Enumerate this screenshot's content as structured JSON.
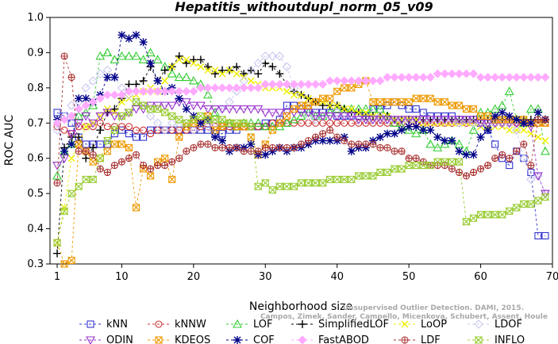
{
  "chart_data": {
    "type": "line",
    "title": "Hepatitis_withoutdupl_norm_05_v09",
    "xlabel": "Neighborhood size",
    "ylabel": "ROC AUC",
    "xlim": [
      0,
      70
    ],
    "ylim": [
      0.3,
      1.0
    ],
    "x_ticks": [
      "1",
      "10",
      "20",
      "30",
      "40",
      "50",
      "60",
      "70"
    ],
    "y_ticks": [
      "0.3",
      "0.4",
      "0.5",
      "0.6",
      "0.7",
      "0.8",
      "0.9",
      "1.0"
    ],
    "grid": false,
    "legend_position": "bottom",
    "x": [
      1,
      2,
      3,
      4,
      5,
      6,
      7,
      8,
      9,
      10,
      11,
      12,
      13,
      14,
      15,
      16,
      17,
      18,
      19,
      20,
      21,
      22,
      23,
      24,
      25,
      26,
      27,
      28,
      29,
      30,
      31,
      32,
      33,
      34,
      35,
      36,
      37,
      38,
      39,
      40,
      41,
      42,
      43,
      44,
      45,
      46,
      47,
      48,
      49,
      50,
      51,
      52,
      53,
      54,
      55,
      56,
      57,
      58,
      59,
      60,
      61,
      62,
      63,
      64,
      65,
      66,
      67,
      68,
      69
    ],
    "series": [
      {
        "name": "kNN",
        "color": "#3333cc",
        "marker": "square",
        "values": [
          0.73,
          0.72,
          0.7,
          0.66,
          0.64,
          0.64,
          0.64,
          0.64,
          0.67,
          0.68,
          0.67,
          0.66,
          0.66,
          0.68,
          0.68,
          0.68,
          0.68,
          0.68,
          0.68,
          0.68,
          0.68,
          0.68,
          0.67,
          0.67,
          0.68,
          0.68,
          0.69,
          0.69,
          0.69,
          0.7,
          0.7,
          0.71,
          0.75,
          0.75,
          0.74,
          0.74,
          0.73,
          0.73,
          0.73,
          0.72,
          0.72,
          0.72,
          0.72,
          0.72,
          0.74,
          0.74,
          0.75,
          0.76,
          0.75,
          0.74,
          0.74,
          0.73,
          0.72,
          0.72,
          0.72,
          0.72,
          0.71,
          0.71,
          0.71,
          0.7,
          0.68,
          0.64,
          0.6,
          0.58,
          0.62,
          0.6,
          0.56,
          0.38,
          0.38
        ]
      },
      {
        "name": "kNNW",
        "color": "#cc3333",
        "marker": "circle",
        "values": [
          0.69,
          0.68,
          0.67,
          0.69,
          0.69,
          0.69,
          0.7,
          0.69,
          0.69,
          0.69,
          0.69,
          0.68,
          0.68,
          0.67,
          0.68,
          0.68,
          0.68,
          0.68,
          0.68,
          0.68,
          0.69,
          0.69,
          0.69,
          0.69,
          0.69,
          0.69,
          0.69,
          0.69,
          0.69,
          0.69,
          0.7,
          0.7,
          0.7,
          0.7,
          0.7,
          0.7,
          0.7,
          0.7,
          0.7,
          0.7,
          0.7,
          0.7,
          0.7,
          0.7,
          0.7,
          0.7,
          0.7,
          0.7,
          0.7,
          0.7,
          0.7,
          0.7,
          0.7,
          0.7,
          0.7,
          0.7,
          0.7,
          0.7,
          0.7,
          0.7,
          0.7,
          0.7,
          0.7,
          0.7,
          0.7,
          0.7,
          0.7,
          0.7,
          0.7
        ]
      },
      {
        "name": "LOF",
        "color": "#33cc33",
        "marker": "triangle-up",
        "values": [
          0.55,
          0.62,
          0.64,
          0.72,
          0.73,
          0.75,
          0.89,
          0.9,
          0.88,
          0.89,
          0.89,
          0.89,
          0.88,
          0.9,
          0.88,
          0.86,
          0.84,
          0.83,
          0.83,
          0.82,
          0.81,
          0.78,
          0.73,
          0.7,
          0.7,
          0.69,
          0.7,
          0.7,
          0.7,
          0.69,
          0.69,
          0.69,
          0.7,
          0.71,
          0.72,
          0.73,
          0.72,
          0.72,
          0.73,
          0.74,
          0.74,
          0.74,
          0.74,
          0.74,
          0.74,
          0.74,
          0.72,
          0.7,
          0.69,
          0.68,
          0.67,
          0.68,
          0.64,
          0.63,
          0.64,
          0.65,
          0.64,
          0.62,
          0.68,
          0.73,
          0.73,
          0.74,
          0.75,
          0.79,
          0.71,
          0.7,
          0.74,
          0.74,
          0.62
        ]
      },
      {
        "name": "SimplifiedLOF",
        "color": "#000000",
        "marker": "plus",
        "values": [
          0.33,
          0.63,
          0.66,
          0.66,
          0.6,
          0.63,
          0.68,
          0.73,
          0.74,
          0.77,
          0.81,
          0.81,
          0.82,
          0.86,
          0.82,
          0.85,
          0.86,
          0.89,
          0.87,
          0.88,
          0.88,
          0.86,
          0.84,
          0.85,
          0.85,
          0.86,
          0.84,
          0.85,
          0.84,
          0.87,
          0.86,
          0.84,
          0.81,
          0.79,
          0.78,
          0.77,
          0.76,
          0.75,
          0.75,
          0.75,
          0.74,
          0.73,
          0.73,
          0.72,
          0.72,
          0.72,
          0.72,
          0.71,
          0.71,
          0.71,
          0.71,
          0.71,
          0.71,
          0.71,
          0.71,
          0.71,
          0.71,
          0.71,
          0.71,
          0.71,
          0.71,
          0.71,
          0.71,
          0.71,
          0.71,
          0.71,
          0.71,
          0.71,
          0.71
        ]
      },
      {
        "name": "LoOP",
        "color": "#eeee00",
        "marker": "x",
        "values": [
          0.36,
          0.46,
          0.6,
          0.64,
          0.69,
          0.7,
          0.72,
          0.74,
          0.73,
          0.76,
          0.77,
          0.78,
          0.79,
          0.8,
          0.79,
          0.82,
          0.86,
          0.88,
          0.88,
          0.87,
          0.86,
          0.85,
          0.85,
          0.84,
          0.85,
          0.84,
          0.83,
          0.82,
          0.81,
          0.8,
          0.8,
          0.8,
          0.79,
          0.78,
          0.78,
          0.77,
          0.76,
          0.76,
          0.75,
          0.75,
          0.74,
          0.74,
          0.73,
          0.73,
          0.72,
          0.72,
          0.72,
          0.71,
          0.71,
          0.71,
          0.71,
          0.7,
          0.7,
          0.7,
          0.7,
          0.7,
          0.7,
          0.7,
          0.7,
          0.69,
          0.69,
          0.69,
          0.69,
          0.68,
          0.68,
          0.68,
          0.67,
          0.66,
          0.65
        ]
      },
      {
        "name": "LDOF",
        "color": "#c8c8f0",
        "marker": "diamond",
        "values": [
          0.68,
          0.72,
          0.75,
          0.76,
          0.8,
          0.82,
          0.84,
          0.85,
          0.83,
          0.8,
          0.78,
          0.76,
          0.75,
          0.72,
          0.7,
          0.68,
          0.7,
          0.69,
          0.7,
          0.68,
          0.7,
          0.69,
          0.7,
          0.74,
          0.76,
          0.79,
          0.82,
          0.85,
          0.87,
          0.89,
          0.89,
          0.89,
          0.86,
          0.8,
          0.75,
          0.72,
          0.71,
          0.72,
          0.72,
          0.73,
          0.72,
          0.72,
          0.71,
          0.71,
          0.71,
          0.72,
          0.71,
          0.71,
          0.71,
          0.7,
          0.71,
          0.71,
          0.71,
          0.71,
          0.71,
          0.71,
          0.7,
          0.71,
          0.7,
          0.7,
          0.7,
          0.7,
          0.7,
          0.7,
          0.68,
          0.6,
          0.54,
          0.55,
          0.5
        ]
      },
      {
        "name": "ODIN",
        "color": "#9933cc",
        "marker": "triangle-down",
        "values": [
          0.58,
          0.6,
          0.67,
          0.7,
          0.72,
          0.7,
          0.72,
          0.73,
          0.72,
          0.72,
          0.73,
          0.74,
          0.74,
          0.75,
          0.75,
          0.75,
          0.75,
          0.76,
          0.76,
          0.75,
          0.75,
          0.74,
          0.74,
          0.74,
          0.74,
          0.74,
          0.74,
          0.74,
          0.74,
          0.73,
          0.73,
          0.73,
          0.73,
          0.73,
          0.73,
          0.73,
          0.72,
          0.72,
          0.72,
          0.72,
          0.72,
          0.72,
          0.71,
          0.71,
          0.71,
          0.71,
          0.71,
          0.71,
          0.71,
          0.71,
          0.71,
          0.71,
          0.71,
          0.71,
          0.71,
          0.71,
          0.71,
          0.71,
          0.71,
          0.7,
          0.7,
          0.7,
          0.7,
          0.7,
          0.7,
          0.7,
          0.69,
          0.55,
          0.5
        ]
      },
      {
        "name": "KDEOS",
        "color": "#ee9900",
        "marker": "square-x",
        "values": [
          0.36,
          0.3,
          0.31,
          0.64,
          0.62,
          0.59,
          0.6,
          0.62,
          0.64,
          0.64,
          0.63,
          0.46,
          0.57,
          0.55,
          0.59,
          0.6,
          0.54,
          0.66,
          0.69,
          0.7,
          0.7,
          0.72,
          0.68,
          0.69,
          0.7,
          0.69,
          0.69,
          0.66,
          0.61,
          0.64,
          0.68,
          0.7,
          0.72,
          0.74,
          0.75,
          0.75,
          0.76,
          0.77,
          0.77,
          0.79,
          0.8,
          0.8,
          0.81,
          0.82,
          0.76,
          0.76,
          0.76,
          0.76,
          0.76,
          0.76,
          0.77,
          0.77,
          0.77,
          0.76,
          0.76,
          0.75,
          0.75,
          0.74,
          0.74,
          0.72,
          0.72,
          0.71,
          0.71,
          0.71,
          0.71,
          0.71,
          0.7,
          0.7,
          0.7
        ]
      },
      {
        "name": "COF",
        "color": "#000088",
        "marker": "star",
        "values": [
          0.71,
          0.62,
          0.64,
          0.77,
          0.77,
          0.76,
          0.78,
          0.83,
          0.83,
          0.95,
          0.94,
          0.95,
          0.93,
          0.87,
          0.82,
          0.79,
          0.8,
          0.77,
          0.74,
          0.72,
          0.7,
          0.71,
          0.66,
          0.65,
          0.62,
          0.63,
          0.63,
          0.64,
          0.61,
          0.61,
          0.62,
          0.63,
          0.62,
          0.63,
          0.63,
          0.64,
          0.65,
          0.65,
          0.65,
          0.65,
          0.66,
          0.62,
          0.63,
          0.63,
          0.65,
          0.66,
          0.67,
          0.67,
          0.68,
          0.69,
          0.69,
          0.68,
          0.68,
          0.66,
          0.65,
          0.65,
          0.62,
          0.61,
          0.61,
          0.66,
          0.68,
          0.72,
          0.73,
          0.72,
          0.71,
          0.7,
          0.7,
          0.73,
          0.71
        ]
      },
      {
        "name": "FastABOD",
        "color": "#ffaaff",
        "marker": "diamond-filled",
        "values": [
          0.7,
          0.71,
          0.72,
          0.74,
          0.75,
          0.76,
          0.77,
          0.78,
          0.78,
          0.78,
          0.79,
          0.79,
          0.79,
          0.79,
          0.79,
          0.79,
          0.79,
          0.79,
          0.79,
          0.79,
          0.8,
          0.8,
          0.8,
          0.8,
          0.8,
          0.8,
          0.8,
          0.8,
          0.8,
          0.81,
          0.81,
          0.81,
          0.81,
          0.81,
          0.81,
          0.81,
          0.81,
          0.81,
          0.82,
          0.82,
          0.82,
          0.82,
          0.82,
          0.82,
          0.82,
          0.82,
          0.83,
          0.83,
          0.83,
          0.83,
          0.83,
          0.83,
          0.83,
          0.84,
          0.84,
          0.84,
          0.84,
          0.84,
          0.84,
          0.83,
          0.83,
          0.83,
          0.83,
          0.83,
          0.83,
          0.83,
          0.83,
          0.83,
          0.83
        ]
      },
      {
        "name": "LDF",
        "color": "#aa3333",
        "marker": "circle-plus",
        "values": [
          0.53,
          0.89,
          0.83,
          0.62,
          0.62,
          0.61,
          0.57,
          0.56,
          0.58,
          0.59,
          0.6,
          0.61,
          0.58,
          0.57,
          0.58,
          0.58,
          0.59,
          0.6,
          0.62,
          0.63,
          0.64,
          0.64,
          0.63,
          0.63,
          0.63,
          0.63,
          0.62,
          0.62,
          0.62,
          0.63,
          0.63,
          0.63,
          0.63,
          0.63,
          0.64,
          0.65,
          0.66,
          0.67,
          0.68,
          0.66,
          0.65,
          0.64,
          0.64,
          0.64,
          0.64,
          0.63,
          0.63,
          0.62,
          0.62,
          0.6,
          0.6,
          0.59,
          0.58,
          0.58,
          0.58,
          0.57,
          0.56,
          0.55,
          0.56,
          0.57,
          0.58,
          0.6,
          0.61,
          0.6,
          0.62,
          0.64,
          0.58,
          0.71,
          0.71
        ]
      },
      {
        "name": "INFLO",
        "color": "#99cc33",
        "marker": "hourglass",
        "values": [
          0.36,
          0.45,
          0.5,
          0.52,
          0.54,
          0.54,
          0.6,
          0.65,
          0.68,
          0.72,
          0.73,
          0.76,
          0.75,
          0.74,
          0.74,
          0.73,
          0.72,
          0.71,
          0.7,
          0.71,
          0.72,
          0.71,
          0.71,
          0.71,
          0.7,
          0.7,
          0.7,
          0.69,
          0.52,
          0.53,
          0.51,
          0.52,
          0.52,
          0.52,
          0.53,
          0.53,
          0.53,
          0.53,
          0.54,
          0.54,
          0.54,
          0.54,
          0.55,
          0.55,
          0.55,
          0.56,
          0.56,
          0.57,
          0.57,
          0.58,
          0.58,
          0.58,
          0.58,
          0.59,
          0.59,
          0.59,
          0.59,
          0.42,
          0.43,
          0.44,
          0.44,
          0.44,
          0.44,
          0.45,
          0.46,
          0.47,
          0.47,
          0.48,
          0.49
        ]
      }
    ],
    "credit_lines": [
      "Unsupervised Outlier Detection. DAMI, 2015.",
      "Campos, Zimek, Sander, Campello, Micenkova, Schubert, Assent, Houle"
    ]
  }
}
